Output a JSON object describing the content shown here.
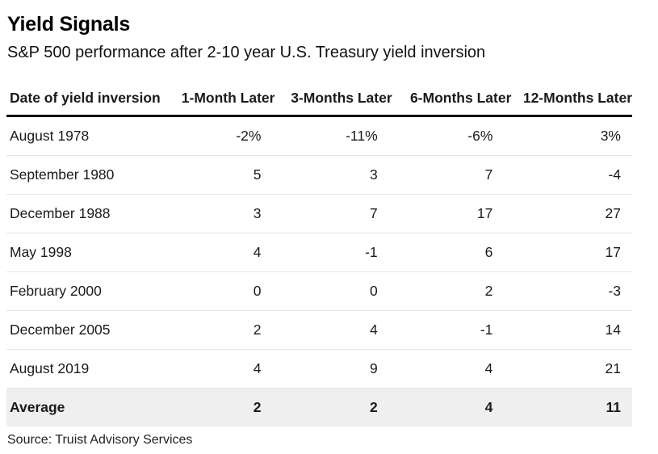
{
  "title": "Yield Signals",
  "subtitle": "S&P 500 performance after 2-10 year U.S. Treasury yield inversion",
  "source": "Source: Truist Advisory Services",
  "chart_data": {
    "type": "table",
    "columns": [
      "Date of yield inversion",
      "1-Month Later",
      "3-Months Later",
      "6-Months Later",
      "12-Months Later"
    ],
    "rows": [
      [
        "August 1978",
        "-2%",
        "-11%",
        "-6%",
        "3%"
      ],
      [
        "September 1980",
        "5",
        "3",
        "7",
        "-4"
      ],
      [
        "December 1988",
        "3",
        "7",
        "17",
        "27"
      ],
      [
        "May 1998",
        "4",
        "-1",
        "6",
        "17"
      ],
      [
        "February 2000",
        "0",
        "0",
        "2",
        "-3"
      ],
      [
        "December 2005",
        "2",
        "4",
        "-1",
        "14"
      ],
      [
        "August 2019",
        "4",
        "9",
        "4",
        "21"
      ]
    ],
    "summary_row": [
      "Average",
      "2",
      "2",
      "4",
      "11"
    ],
    "unit": "%"
  },
  "colors": {
    "header_rule": "#000000",
    "row_divider": "#e6e6e6",
    "average_background": "#efefef"
  }
}
